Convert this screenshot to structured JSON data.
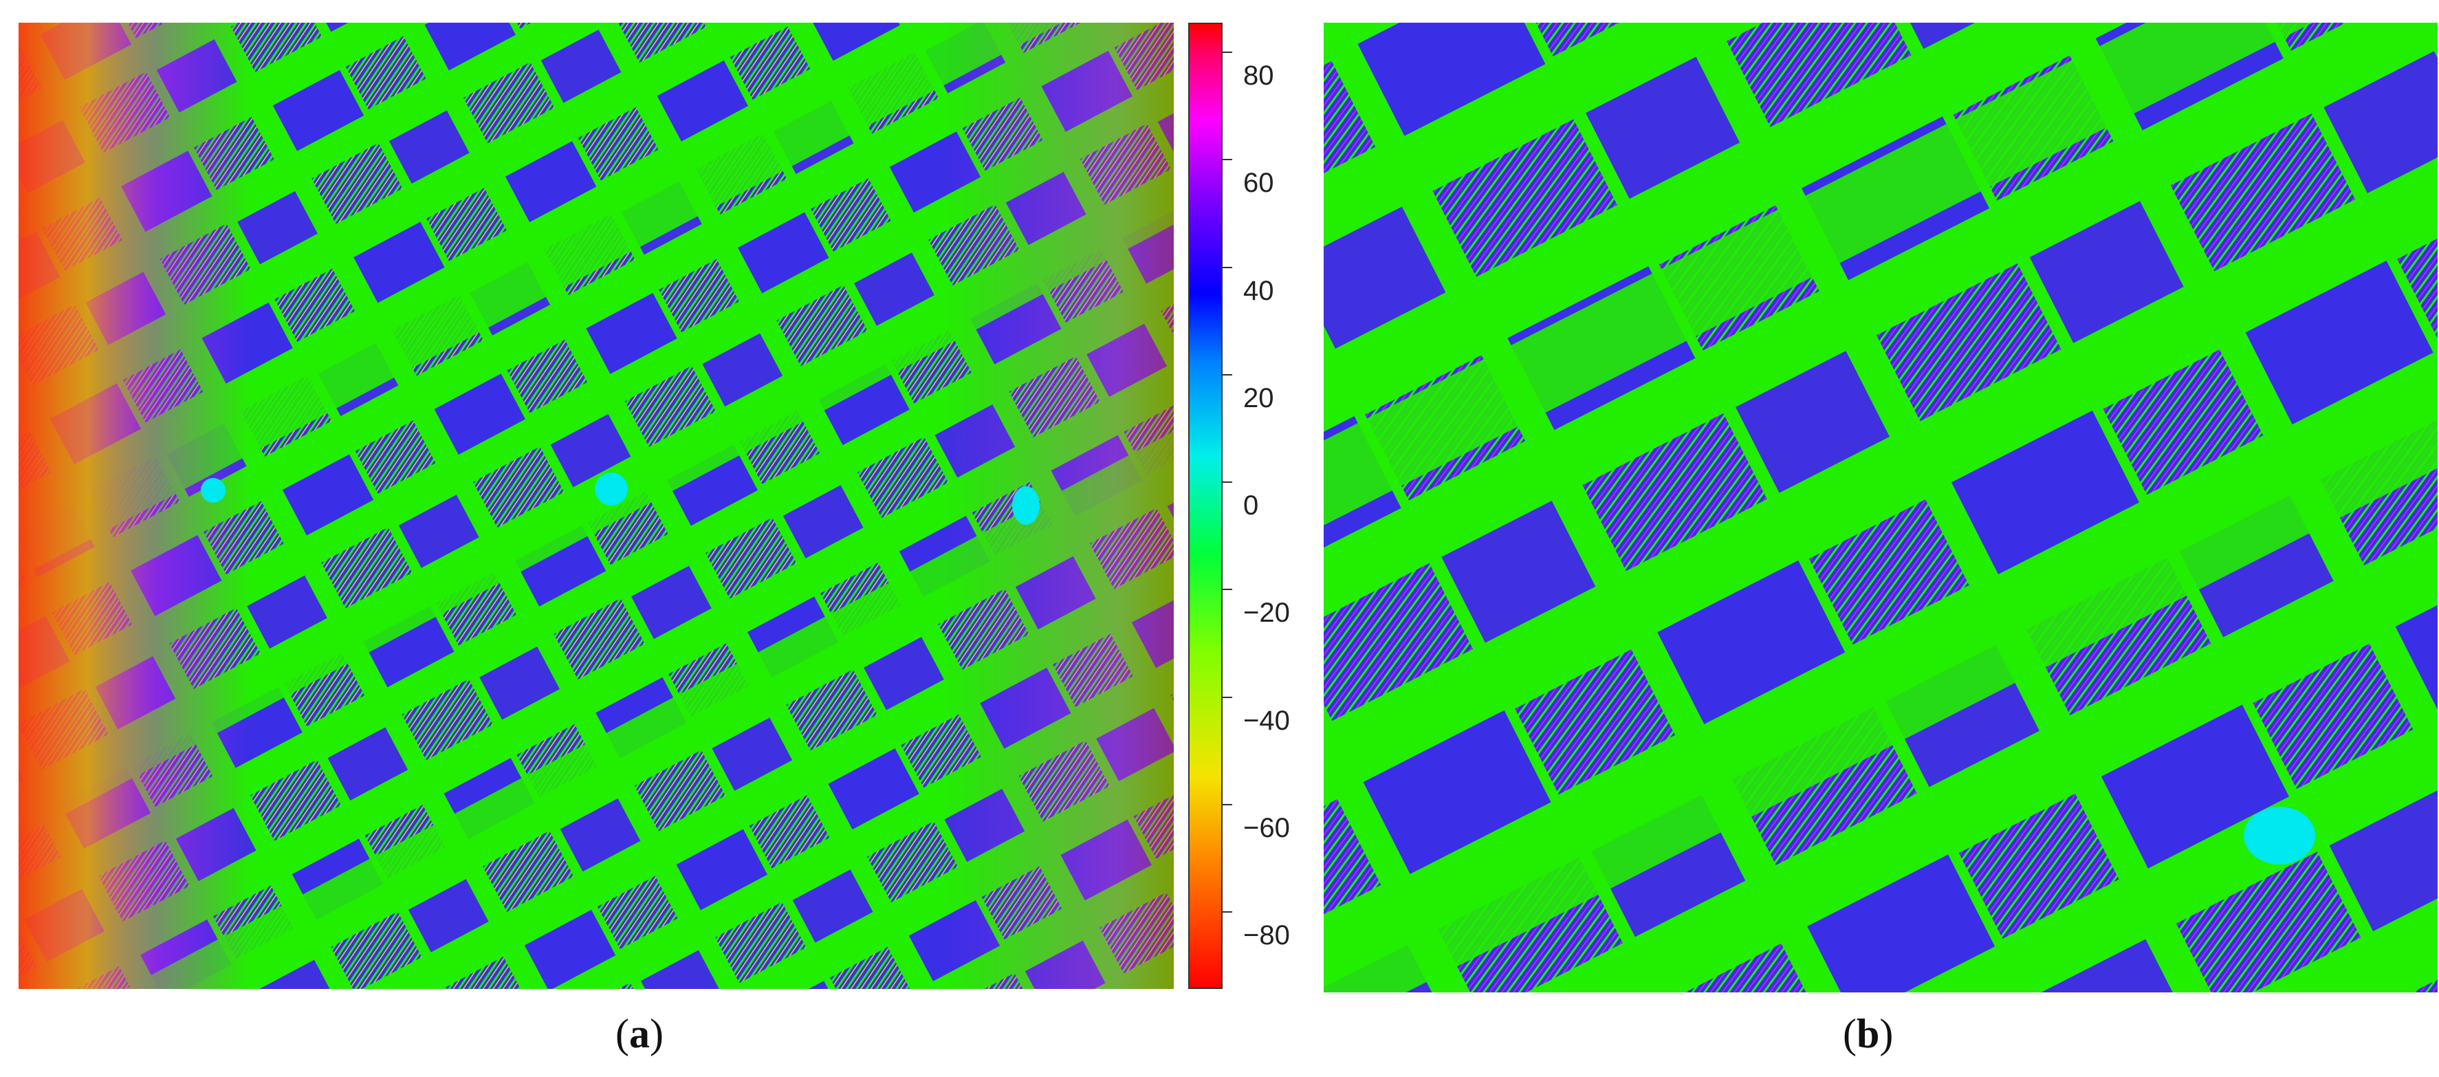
{
  "figure": {
    "panel_a": {
      "label": "a",
      "caption_open": "(",
      "caption_close": ")"
    },
    "panel_b": {
      "label": "b",
      "caption_open": "(",
      "caption_close": ")"
    },
    "colorbar": {
      "ticks": [
        "80",
        "60",
        "40",
        "20",
        "0",
        "−20",
        "−40",
        "−60",
        "−80"
      ],
      "range": [
        -90,
        90
      ]
    },
    "colors": {
      "green": "#22ee00",
      "blue": "#3a2ee6",
      "purple": "#8a2ae0",
      "magenta": "#e020e8",
      "orange": "#ff7a1a",
      "red": "#ff2a10",
      "cyan": "#00e8f0",
      "yellow": "#d8e800"
    }
  }
}
